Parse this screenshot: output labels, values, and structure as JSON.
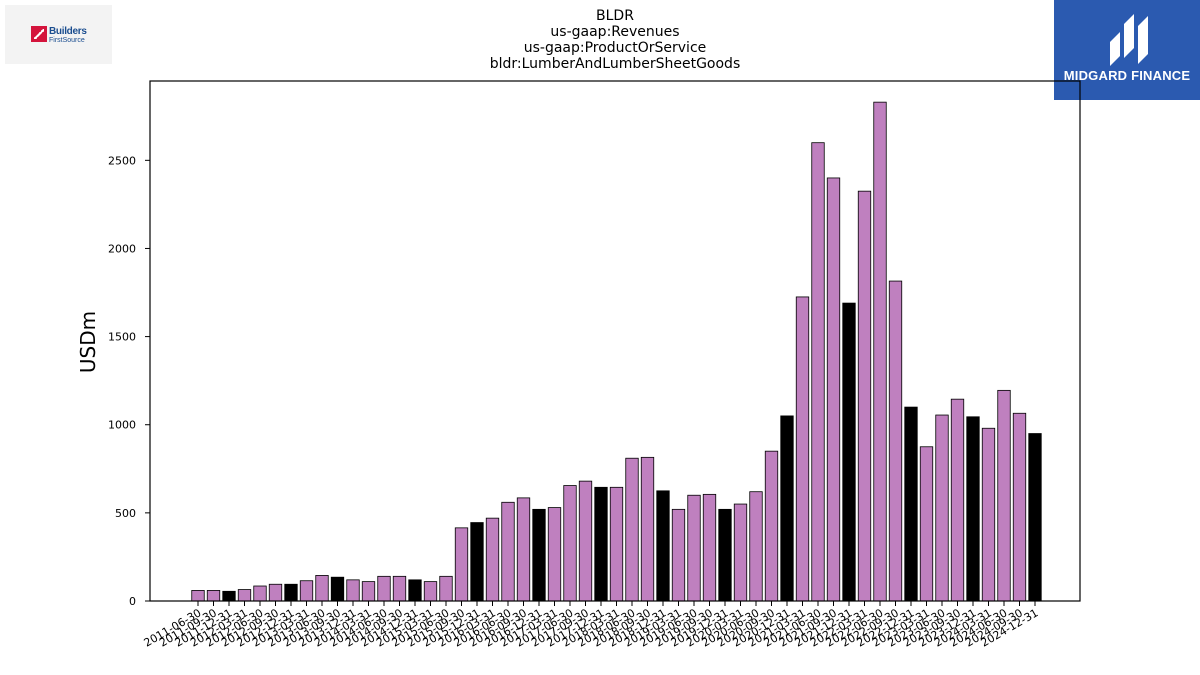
{
  "header": {
    "title_lines": [
      "BLDR",
      "us-gaap:Revenues",
      "us-gaap:ProductOrService",
      "bldr:LumberAndLumberSheetGoods"
    ]
  },
  "logos": {
    "left_line1": "Builders",
    "left_line2": "FirstSource",
    "right_brand": "MIDGARD FINANCE"
  },
  "colors": {
    "bar_default": "#bf80bf",
    "bar_highlight": "#000000",
    "logo_right_bg": "#2b5ab0"
  },
  "chart_data": {
    "type": "bar",
    "title": "BLDR\nus-gaap:Revenues\nus-gaap:ProductOrService\nbldr:LumberAndLumberSheetGoods",
    "xlabel": "",
    "ylabel": "USDm",
    "ylim": [
      0,
      2950
    ],
    "yticks": [
      0,
      500,
      1000,
      1500,
      2000,
      2500
    ],
    "categories": [
      "2011-06-30",
      "2011-09-30",
      "2011-12-31",
      "2012-03-31",
      "2012-06-30",
      "2012-09-30",
      "2012-12-31",
      "2013-03-31",
      "2013-06-30",
      "2013-09-30",
      "2013-12-31",
      "2014-03-31",
      "2014-06-30",
      "2014-09-30",
      "2014-12-31",
      "2015-03-31",
      "2015-06-30",
      "2015-09-30",
      "2015-12-31",
      "2016-03-31",
      "2016-06-30",
      "2016-09-30",
      "2016-12-31",
      "2017-03-31",
      "2017-06-30",
      "2017-09-30",
      "2017-12-31",
      "2018-03-31",
      "2018-06-30",
      "2018-09-30",
      "2018-12-31",
      "2019-03-31",
      "2019-06-30",
      "2019-09-30",
      "2019-12-31",
      "2020-03-31",
      "2020-06-30",
      "2020-09-30",
      "2020-12-31",
      "2021-03-31",
      "2021-06-30",
      "2021-09-30",
      "2021-12-31",
      "2022-03-31",
      "2022-06-30",
      "2022-09-30",
      "2022-12-31",
      "2023-03-31",
      "2023-06-30",
      "2023-09-30",
      "2023-12-31",
      "2024-03-31",
      "2024-06-30",
      "2024-09-30",
      "2024-12-31"
    ],
    "values": [
      60,
      60,
      55,
      65,
      85,
      95,
      95,
      115,
      145,
      135,
      120,
      110,
      140,
      140,
      120,
      110,
      140,
      415,
      445,
      470,
      560,
      585,
      520,
      530,
      655,
      680,
      645,
      645,
      810,
      815,
      625,
      520,
      600,
      605,
      520,
      550,
      620,
      850,
      1050,
      1725,
      2600,
      2400,
      1690,
      2325,
      2830,
      1815,
      1100,
      875,
      1055,
      1145,
      1045,
      980,
      1195,
      1065,
      950
    ],
    "highlight_indices": [
      2,
      6,
      9,
      14,
      18,
      22,
      26,
      30,
      34,
      38,
      42,
      46,
      50,
      54
    ],
    "grid": false,
    "legend": "none"
  }
}
